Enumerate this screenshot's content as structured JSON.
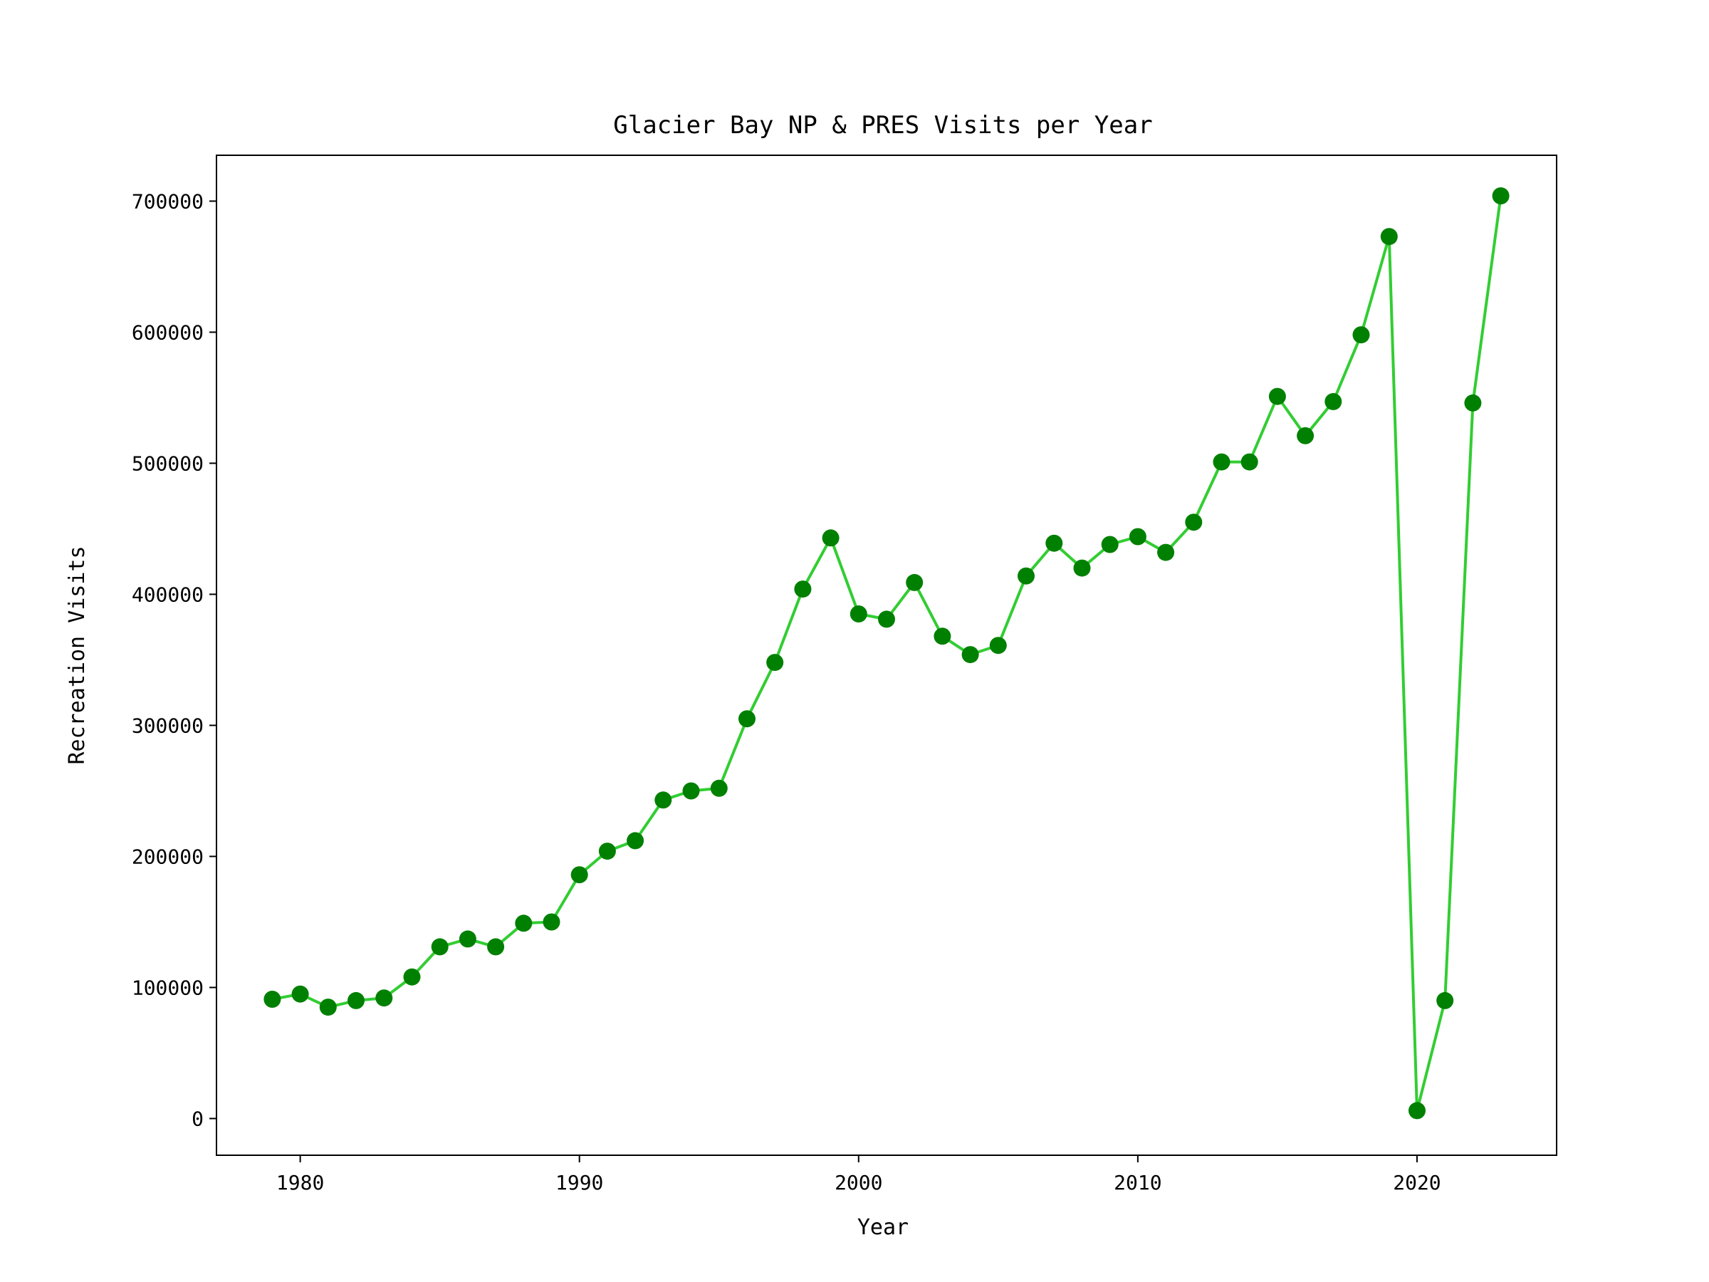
{
  "chart_data": {
    "type": "line",
    "title": "Glacier Bay NP & PRES Visits per Year",
    "xlabel": "Year",
    "ylabel": "Recreation Visits",
    "xlim": [
      1977,
      2025
    ],
    "ylim": [
      -28000,
      735000
    ],
    "xticks": [
      1980,
      1990,
      2000,
      2010,
      2020
    ],
    "yticks": [
      0,
      100000,
      200000,
      300000,
      400000,
      500000,
      600000,
      700000
    ],
    "grid": false,
    "legend": "none",
    "line_color": "#32cd32",
    "marker_color": "#008000",
    "series": [
      {
        "x": [
          1979,
          1980,
          1981,
          1982,
          1983,
          1984,
          1985,
          1986,
          1987,
          1988,
          1989,
          1990,
          1991,
          1992,
          1993,
          1994,
          1995,
          1996,
          1997,
          1998,
          1999,
          2000,
          2001,
          2002,
          2003,
          2004,
          2005,
          2006,
          2007,
          2008,
          2009,
          2010,
          2011,
          2012,
          2013,
          2014,
          2015,
          2016,
          2017,
          2018,
          2019,
          2020,
          2021,
          2022,
          2023
        ],
        "values": [
          91000,
          95000,
          85000,
          90000,
          92000,
          108000,
          131000,
          137000,
          131000,
          149000,
          150000,
          186000,
          204000,
          212000,
          243000,
          250000,
          252000,
          305000,
          348000,
          404000,
          443000,
          385000,
          381000,
          409000,
          368000,
          354000,
          361000,
          414000,
          439000,
          420000,
          438000,
          444000,
          432000,
          455000,
          501000,
          501000,
          551000,
          521000,
          547000,
          598000,
          673000,
          6000,
          90000,
          546000,
          704000
        ]
      }
    ]
  }
}
